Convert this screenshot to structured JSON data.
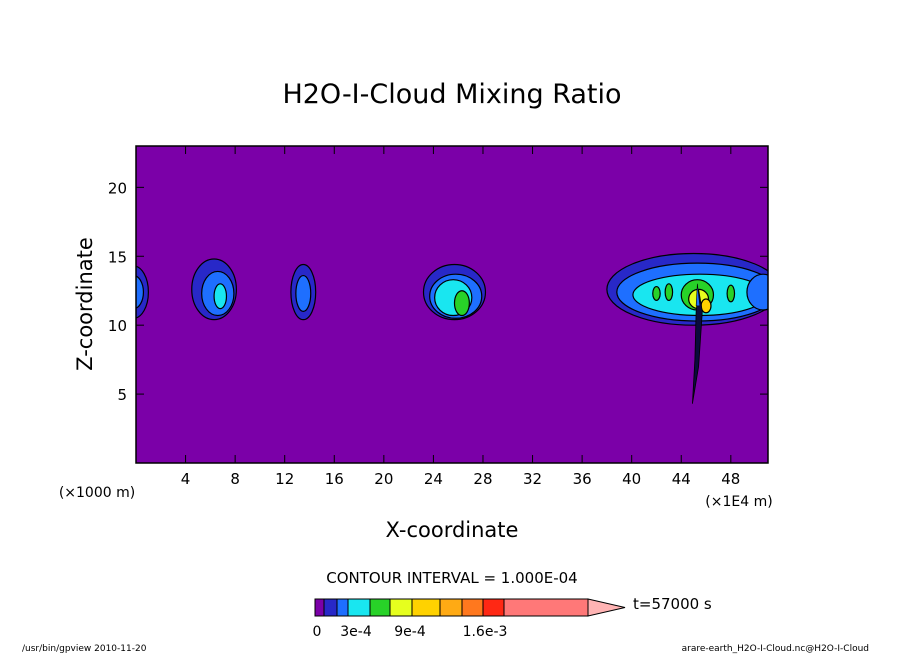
{
  "chart_data": {
    "type": "contour",
    "title": "H2O-I-Cloud Mixing Ratio",
    "xlabel": "X-coordinate",
    "ylabel": "Z-coordinate",
    "x_unit": "(×1E4 m)",
    "y_unit": "(×1000 m)",
    "xlim": [
      0,
      51
    ],
    "ylim": [
      0,
      23
    ],
    "x_ticks": [
      4,
      8,
      12,
      16,
      20,
      24,
      28,
      32,
      36,
      40,
      44,
      48
    ],
    "y_ticks": [
      5,
      10,
      15,
      20
    ],
    "background_color": "#7B00A8",
    "contour_interval_text": "CONTOUR INTERVAL = 1.000E-04",
    "time_text": "t=57000 s",
    "colorbar": {
      "colors": [
        "#7B00A8",
        "#2828C8",
        "#1E6FFF",
        "#19E6F0",
        "#28D228",
        "#E6FF1E",
        "#FFD200",
        "#FFAA14",
        "#FF781E",
        "#FF2814",
        "#FF7878",
        "#FFB4B4"
      ],
      "tick_labels": [
        "0",
        "3e-4",
        "9e-4",
        "1.6e-3"
      ]
    },
    "cloud_features": [
      {
        "x_center": 0.3,
        "z_center": 12.4,
        "max_level_color": "#1E6FFF"
      },
      {
        "x_center": 6.5,
        "z_center": 12.3,
        "max_level_color": "#19E6F0"
      },
      {
        "x_center": 13.4,
        "z_center": 12.3,
        "max_level_color": "#1E6FFF"
      },
      {
        "x_center": 25.8,
        "z_center": 11.8,
        "max_level_color": "#28D228"
      },
      {
        "x_center": 45.2,
        "z_center": 12.0,
        "max_level_color": "#E6FF1E"
      }
    ]
  },
  "footer": {
    "left": "/usr/bin/gpview   2010-11-20",
    "right": "arare-earth_H2O-I-Cloud.nc@H2O-I-Cloud"
  }
}
